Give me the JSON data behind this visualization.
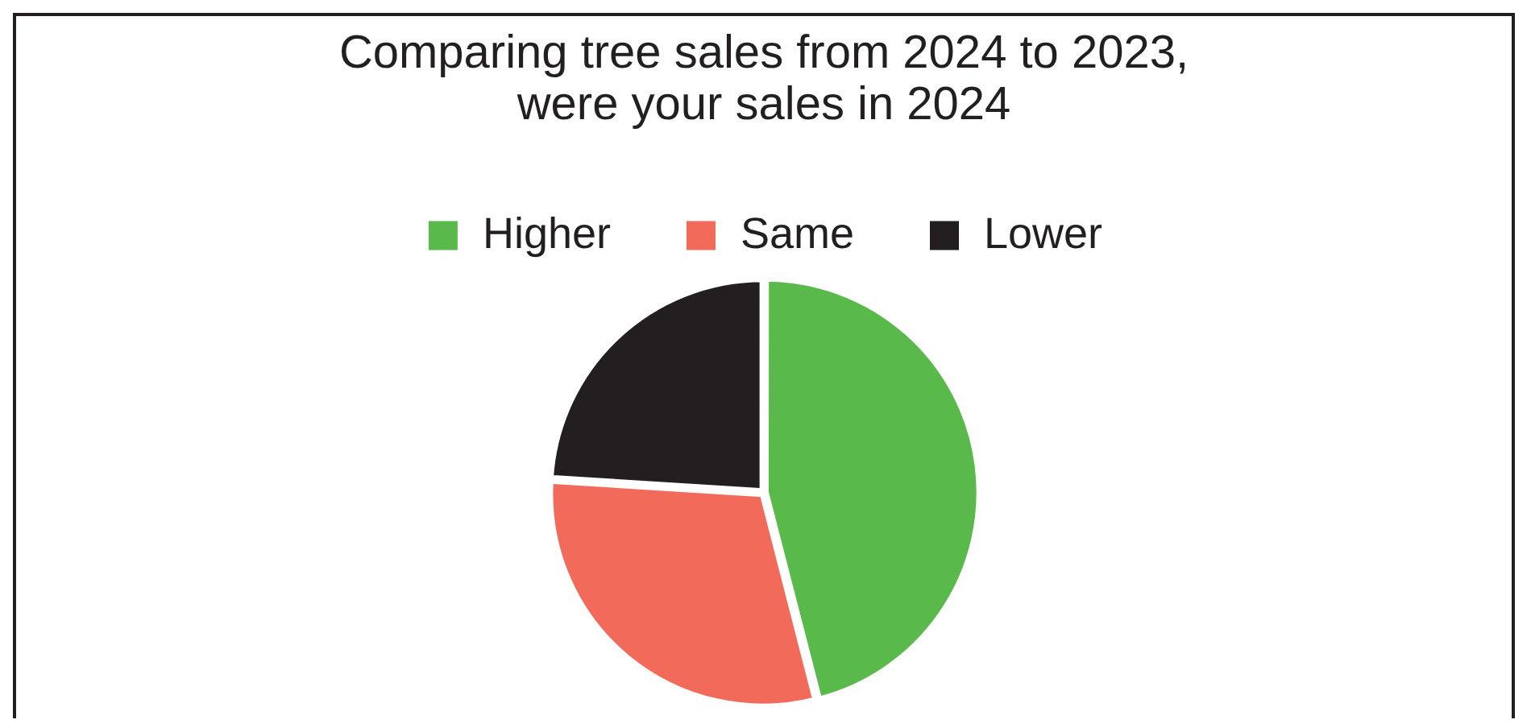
{
  "chart_data": {
    "type": "pie",
    "title": "Comparing tree sales from 2024 to 2023,\nwere your sales in 2024",
    "categories": [
      "Higher",
      "Same",
      "Lower"
    ],
    "values": [
      46,
      30,
      24
    ],
    "colors": [
      "#59b94a",
      "#f26a5a",
      "#231f20"
    ],
    "legend": "top"
  }
}
